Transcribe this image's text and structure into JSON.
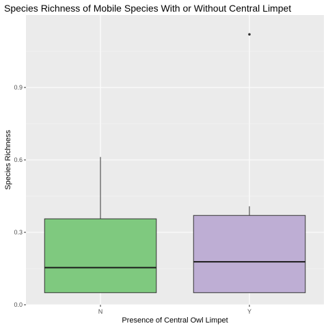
{
  "chart_data": {
    "type": "box",
    "title": "Species Richness of Mobile Species With or Without Central Limpet",
    "xlabel": "Presence of Central Owl Limpet",
    "ylabel": "Species Richness",
    "categories": [
      "N",
      "Y"
    ],
    "ylim": [
      0,
      1.2
    ],
    "yticks": [
      0.0,
      0.3,
      0.6,
      0.9
    ],
    "ytick_labels": [
      "0.0",
      "0.3",
      "0.6",
      "0.9"
    ],
    "boxes": [
      {
        "category": "N",
        "lower_whisker": 0.05,
        "q1": 0.05,
        "median": 0.154,
        "q3": 0.356,
        "upper_whisker": 0.612,
        "outliers": [],
        "fill": "#7fc97f"
      },
      {
        "category": "Y",
        "lower_whisker": 0.05,
        "q1": 0.05,
        "median": 0.178,
        "q3": 0.37,
        "upper_whisker": 0.408,
        "outliers": [
          1.12
        ],
        "fill": "#beaed4"
      }
    ],
    "grid": true,
    "legend": "none",
    "colors": {
      "panel": "#ebebeb",
      "grid_major": "#ffffff",
      "grid_minor": "#f5f5f5",
      "box_line": "#333333",
      "median_line": "#1a1a1a"
    }
  }
}
